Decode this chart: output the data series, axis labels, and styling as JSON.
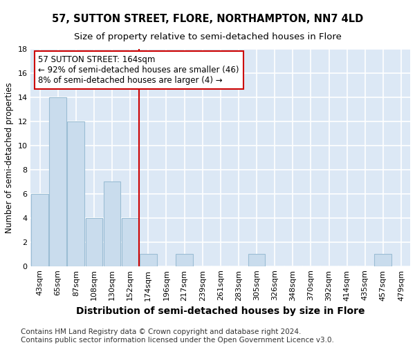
{
  "title": "57, SUTTON STREET, FLORE, NORTHAMPTON, NN7 4LD",
  "subtitle": "Size of property relative to semi-detached houses in Flore",
  "xlabel": "Distribution of semi-detached houses by size in Flore",
  "ylabel": "Number of semi-detached properties",
  "categories": [
    "43sqm",
    "65sqm",
    "87sqm",
    "108sqm",
    "130sqm",
    "152sqm",
    "174sqm",
    "196sqm",
    "217sqm",
    "239sqm",
    "261sqm",
    "283sqm",
    "305sqm",
    "326sqm",
    "348sqm",
    "370sqm",
    "392sqm",
    "414sqm",
    "435sqm",
    "457sqm",
    "479sqm"
  ],
  "values": [
    6,
    14,
    12,
    4,
    7,
    4,
    1,
    0,
    1,
    0,
    0,
    0,
    1,
    0,
    0,
    0,
    0,
    0,
    0,
    1,
    0
  ],
  "bar_color": "#c9dced",
  "bar_edge_color": "#9bbdd4",
  "property_line_index": 6,
  "property_line_color": "#cc0000",
  "annotation_line1": "57 SUTTON STREET: 164sqm",
  "annotation_line2": "← 92% of semi-detached houses are smaller (46)",
  "annotation_line3": "8% of semi-detached houses are larger (4) →",
  "annotation_box_color": "#ffffff",
  "annotation_box_edge": "#cc0000",
  "ylim": [
    0,
    18
  ],
  "yticks": [
    0,
    2,
    4,
    6,
    8,
    10,
    12,
    14,
    16,
    18
  ],
  "footnote": "Contains HM Land Registry data © Crown copyright and database right 2024.\nContains public sector information licensed under the Open Government Licence v3.0.",
  "background_color": "#ffffff",
  "plot_bg_color": "#dce8f5",
  "grid_color": "#ffffff",
  "title_fontsize": 10.5,
  "subtitle_fontsize": 9.5,
  "xlabel_fontsize": 10,
  "ylabel_fontsize": 8.5,
  "tick_fontsize": 8,
  "annotation_fontsize": 8.5,
  "footnote_fontsize": 7.5
}
